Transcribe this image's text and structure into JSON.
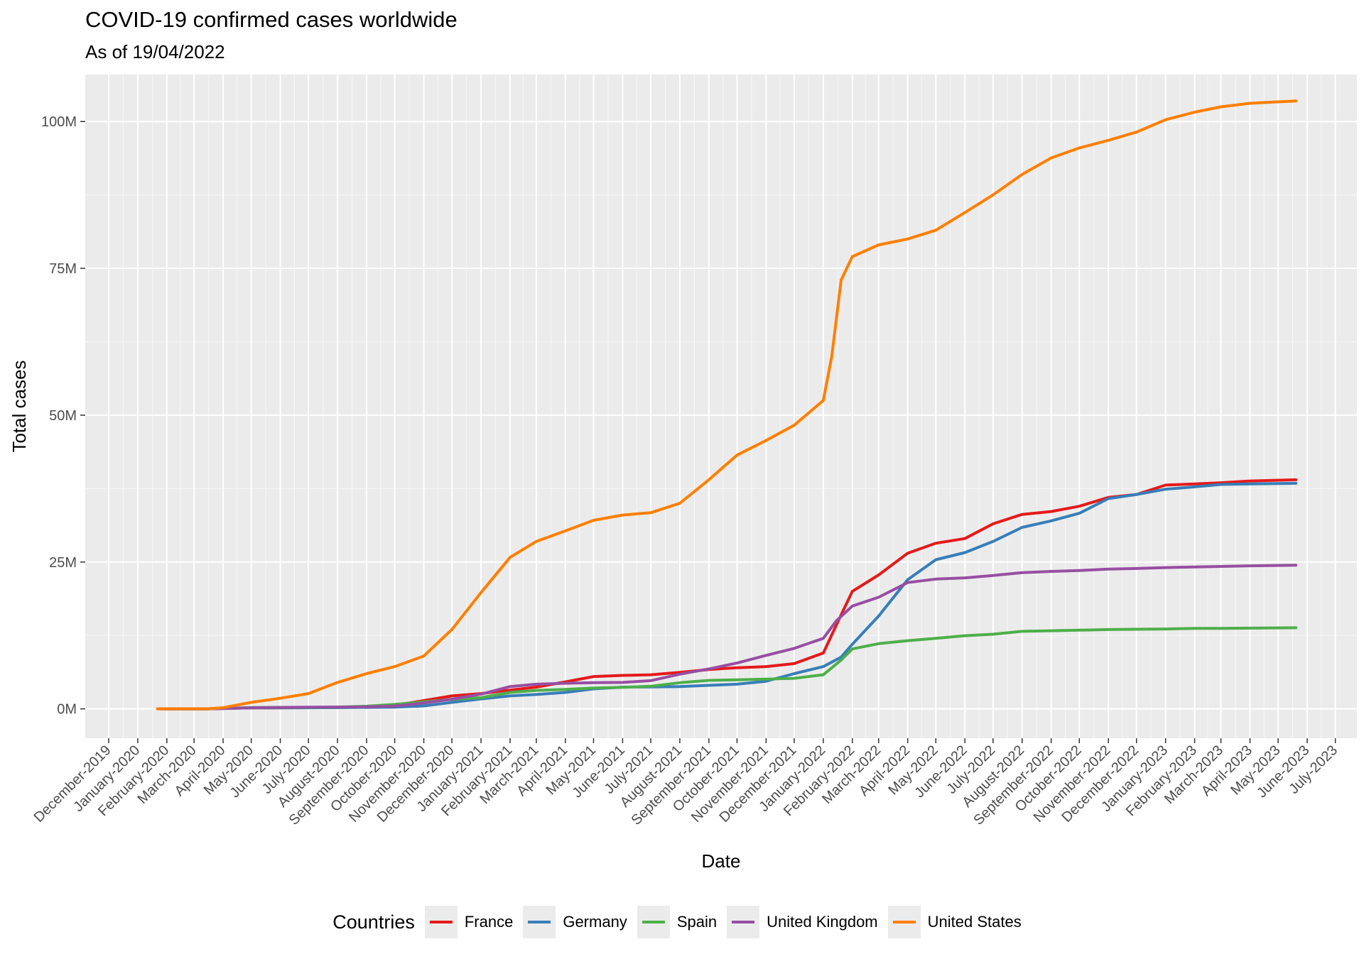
{
  "chart_data": {
    "type": "line",
    "title": "COVID-19 confirmed cases worldwide",
    "subtitle": "As of 19/04/2022",
    "xlabel": "Date",
    "ylabel": "Total cases",
    "x_axis": {
      "type": "date",
      "range": [
        "2019-11-06",
        "2023-07-24"
      ],
      "ticks": [
        "2019-12-01",
        "2020-01-01",
        "2020-02-01",
        "2020-03-01",
        "2020-04-01",
        "2020-05-01",
        "2020-06-01",
        "2020-07-01",
        "2020-08-01",
        "2020-09-01",
        "2020-10-01",
        "2020-11-01",
        "2020-12-01",
        "2021-01-01",
        "2021-02-01",
        "2021-03-01",
        "2021-04-01",
        "2021-05-01",
        "2021-06-01",
        "2021-07-01",
        "2021-08-01",
        "2021-09-01",
        "2021-10-01",
        "2021-11-01",
        "2021-12-01",
        "2022-01-01",
        "2022-02-01",
        "2022-03-01",
        "2022-04-01",
        "2022-05-01",
        "2022-06-01",
        "2022-07-01",
        "2022-08-01",
        "2022-09-01",
        "2022-10-01",
        "2022-11-01",
        "2022-12-01",
        "2023-01-01",
        "2023-02-01",
        "2023-03-01",
        "2023-04-01",
        "2023-05-01",
        "2023-06-01",
        "2023-07-01"
      ],
      "tick_labels": [
        "December-2019",
        "January-2020",
        "February-2020",
        "March-2020",
        "April-2020",
        "May-2020",
        "June-2020",
        "July-2020",
        "August-2020",
        "September-2020",
        "October-2020",
        "November-2020",
        "December-2020",
        "January-2021",
        "February-2021",
        "March-2021",
        "April-2021",
        "May-2021",
        "June-2021",
        "July-2021",
        "August-2021",
        "September-2021",
        "October-2021",
        "November-2021",
        "December-2021",
        "January-2022",
        "February-2022",
        "March-2022",
        "April-2022",
        "May-2022",
        "June-2022",
        "July-2022",
        "August-2022",
        "September-2022",
        "October-2022",
        "November-2022",
        "December-2022",
        "January-2023",
        "February-2023",
        "March-2023",
        "April-2023",
        "May-2023",
        "June-2023",
        "July-2023"
      ],
      "tick_label_angle": 45
    },
    "y_axis": {
      "range": [
        -5000000,
        108000000
      ],
      "ticks": [
        0,
        25000000,
        50000000,
        75000000,
        100000000
      ],
      "tick_labels": [
        "0M",
        "25M",
        "50M",
        "75M",
        "100M"
      ]
    },
    "grid": true,
    "legend": {
      "title": "Countries",
      "position": "bottom"
    },
    "series": [
      {
        "name": "France",
        "color": "#E41A1C",
        "points": [
          [
            "2020-01-24",
            0
          ],
          [
            "2020-03-15",
            5000
          ],
          [
            "2020-05-01",
            160000
          ],
          [
            "2020-07-01",
            200000
          ],
          [
            "2020-08-01",
            230000
          ],
          [
            "2020-09-01",
            300000
          ],
          [
            "2020-10-01",
            600000
          ],
          [
            "2020-11-01",
            1400000
          ],
          [
            "2020-12-01",
            2200000
          ],
          [
            "2021-01-01",
            2600000
          ],
          [
            "2021-02-01",
            3200000
          ],
          [
            "2021-03-01",
            3700000
          ],
          [
            "2021-04-01",
            4600000
          ],
          [
            "2021-05-01",
            5500000
          ],
          [
            "2021-06-01",
            5700000
          ],
          [
            "2021-07-01",
            5800000
          ],
          [
            "2021-08-01",
            6200000
          ],
          [
            "2021-09-01",
            6700000
          ],
          [
            "2021-10-01",
            7000000
          ],
          [
            "2021-11-01",
            7200000
          ],
          [
            "2021-12-01",
            7700000
          ],
          [
            "2022-01-01",
            9500000
          ],
          [
            "2022-01-20",
            16000000
          ],
          [
            "2022-02-01",
            20000000
          ],
          [
            "2022-03-01",
            22800000
          ],
          [
            "2022-04-01",
            26500000
          ],
          [
            "2022-05-01",
            28200000
          ],
          [
            "2022-06-01",
            29000000
          ],
          [
            "2022-07-01",
            31500000
          ],
          [
            "2022-08-01",
            33100000
          ],
          [
            "2022-09-01",
            33600000
          ],
          [
            "2022-10-01",
            34500000
          ],
          [
            "2022-11-01",
            36000000
          ],
          [
            "2022-12-01",
            36500000
          ],
          [
            "2023-01-01",
            38100000
          ],
          [
            "2023-02-01",
            38300000
          ],
          [
            "2023-03-01",
            38500000
          ],
          [
            "2023-04-01",
            38800000
          ],
          [
            "2023-05-20",
            39000000
          ]
        ]
      },
      {
        "name": "Germany",
        "color": "#377EB8",
        "points": [
          [
            "2020-01-27",
            0
          ],
          [
            "2020-03-15",
            5000
          ],
          [
            "2020-05-01",
            160000
          ],
          [
            "2020-07-01",
            190000
          ],
          [
            "2020-08-01",
            210000
          ],
          [
            "2020-09-01",
            240000
          ],
          [
            "2020-10-01",
            290000
          ],
          [
            "2020-11-01",
            500000
          ],
          [
            "2020-12-01",
            1100000
          ],
          [
            "2021-01-01",
            1700000
          ],
          [
            "2021-02-01",
            2200000
          ],
          [
            "2021-03-01",
            2450000
          ],
          [
            "2021-04-01",
            2800000
          ],
          [
            "2021-05-01",
            3400000
          ],
          [
            "2021-06-01",
            3700000
          ],
          [
            "2021-07-01",
            3730000
          ],
          [
            "2021-08-01",
            3800000
          ],
          [
            "2021-09-01",
            4000000
          ],
          [
            "2021-10-01",
            4200000
          ],
          [
            "2021-11-01",
            4700000
          ],
          [
            "2021-12-01",
            6000000
          ],
          [
            "2022-01-01",
            7200000
          ],
          [
            "2022-01-20",
            8800000
          ],
          [
            "2022-02-01",
            11000000
          ],
          [
            "2022-03-01",
            15800000
          ],
          [
            "2022-04-01",
            22000000
          ],
          [
            "2022-05-01",
            25400000
          ],
          [
            "2022-06-01",
            26600000
          ],
          [
            "2022-07-01",
            28500000
          ],
          [
            "2022-08-01",
            30900000
          ],
          [
            "2022-09-01",
            32000000
          ],
          [
            "2022-10-01",
            33300000
          ],
          [
            "2022-11-01",
            35800000
          ],
          [
            "2022-12-01",
            36500000
          ],
          [
            "2023-01-01",
            37400000
          ],
          [
            "2023-02-01",
            37800000
          ],
          [
            "2023-03-01",
            38200000
          ],
          [
            "2023-04-01",
            38300000
          ],
          [
            "2023-05-20",
            38400000
          ]
        ]
      },
      {
        "name": "Spain",
        "color": "#4DAF4A",
        "points": [
          [
            "2020-01-31",
            0
          ],
          [
            "2020-03-15",
            8000
          ],
          [
            "2020-05-01",
            220000
          ],
          [
            "2020-07-01",
            250000
          ],
          [
            "2020-08-01",
            300000
          ],
          [
            "2020-09-01",
            450000
          ],
          [
            "2020-10-01",
            750000
          ],
          [
            "2020-11-01",
            1200000
          ],
          [
            "2020-12-01",
            1600000
          ],
          [
            "2021-01-01",
            1900000
          ],
          [
            "2021-02-01",
            2800000
          ],
          [
            "2021-03-01",
            3150000
          ],
          [
            "2021-04-01",
            3300000
          ],
          [
            "2021-05-01",
            3550000
          ],
          [
            "2021-06-01",
            3650000
          ],
          [
            "2021-07-01",
            3850000
          ],
          [
            "2021-08-01",
            4450000
          ],
          [
            "2021-09-01",
            4850000
          ],
          [
            "2021-10-01",
            4950000
          ],
          [
            "2021-11-01",
            5050000
          ],
          [
            "2021-12-01",
            5200000
          ],
          [
            "2022-01-01",
            5800000
          ],
          [
            "2022-01-20",
            8300000
          ],
          [
            "2022-02-01",
            10200000
          ],
          [
            "2022-03-01",
            11100000
          ],
          [
            "2022-04-01",
            11600000
          ],
          [
            "2022-05-01",
            12000000
          ],
          [
            "2022-06-01",
            12450000
          ],
          [
            "2022-07-01",
            12700000
          ],
          [
            "2022-08-01",
            13200000
          ],
          [
            "2022-09-01",
            13300000
          ],
          [
            "2022-10-01",
            13400000
          ],
          [
            "2022-11-01",
            13500000
          ],
          [
            "2022-12-01",
            13550000
          ],
          [
            "2023-01-01",
            13600000
          ],
          [
            "2023-02-01",
            13700000
          ],
          [
            "2023-03-01",
            13700000
          ],
          [
            "2023-04-01",
            13750000
          ],
          [
            "2023-05-20",
            13800000
          ]
        ]
      },
      {
        "name": "United Kingdom",
        "color": "#984EA3",
        "points": [
          [
            "2020-01-31",
            0
          ],
          [
            "2020-03-15",
            5000
          ],
          [
            "2020-05-01",
            180000
          ],
          [
            "2020-07-01",
            290000
          ],
          [
            "2020-08-01",
            310000
          ],
          [
            "2020-09-01",
            340000
          ],
          [
            "2020-10-01",
            470000
          ],
          [
            "2020-11-01",
            1000000
          ],
          [
            "2020-12-01",
            1650000
          ],
          [
            "2021-01-01",
            2500000
          ],
          [
            "2021-02-01",
            3800000
          ],
          [
            "2021-03-01",
            4200000
          ],
          [
            "2021-04-01",
            4350000
          ],
          [
            "2021-05-01",
            4450000
          ],
          [
            "2021-06-01",
            4500000
          ],
          [
            "2021-07-01",
            4800000
          ],
          [
            "2021-08-01",
            5900000
          ],
          [
            "2021-09-01",
            6800000
          ],
          [
            "2021-10-01",
            7800000
          ],
          [
            "2021-11-01",
            9100000
          ],
          [
            "2021-12-01",
            10300000
          ],
          [
            "2022-01-01",
            12000000
          ],
          [
            "2022-01-15",
            15000000
          ],
          [
            "2022-02-01",
            17500000
          ],
          [
            "2022-03-01",
            19000000
          ],
          [
            "2022-04-01",
            21500000
          ],
          [
            "2022-05-01",
            22100000
          ],
          [
            "2022-06-01",
            22300000
          ],
          [
            "2022-07-01",
            22700000
          ],
          [
            "2022-08-01",
            23200000
          ],
          [
            "2022-09-01",
            23400000
          ],
          [
            "2022-10-01",
            23550000
          ],
          [
            "2022-11-01",
            23800000
          ],
          [
            "2022-12-01",
            23900000
          ],
          [
            "2023-01-01",
            24050000
          ],
          [
            "2023-02-01",
            24150000
          ],
          [
            "2023-03-01",
            24250000
          ],
          [
            "2023-04-01",
            24350000
          ],
          [
            "2023-05-20",
            24450000
          ]
        ]
      },
      {
        "name": "United States",
        "color": "#FF7F00",
        "points": [
          [
            "2020-01-22",
            0
          ],
          [
            "2020-03-15",
            3000
          ],
          [
            "2020-04-01",
            200000
          ],
          [
            "2020-05-01",
            1100000
          ],
          [
            "2020-06-01",
            1800000
          ],
          [
            "2020-07-01",
            2600000
          ],
          [
            "2020-08-01",
            4500000
          ],
          [
            "2020-09-01",
            6000000
          ],
          [
            "2020-10-01",
            7200000
          ],
          [
            "2020-11-01",
            9000000
          ],
          [
            "2020-12-01",
            13500000
          ],
          [
            "2021-01-01",
            19800000
          ],
          [
            "2021-02-01",
            25800000
          ],
          [
            "2021-03-01",
            28500000
          ],
          [
            "2021-04-01",
            30300000
          ],
          [
            "2021-05-01",
            32100000
          ],
          [
            "2021-06-01",
            33000000
          ],
          [
            "2021-07-01",
            33400000
          ],
          [
            "2021-08-01",
            35000000
          ],
          [
            "2021-09-01",
            39000000
          ],
          [
            "2021-10-01",
            43200000
          ],
          [
            "2021-11-01",
            45700000
          ],
          [
            "2021-12-01",
            48300000
          ],
          [
            "2022-01-01",
            52500000
          ],
          [
            "2022-01-10",
            60000000
          ],
          [
            "2022-01-20",
            73000000
          ],
          [
            "2022-02-01",
            77000000
          ],
          [
            "2022-03-01",
            79000000
          ],
          [
            "2022-04-01",
            80000000
          ],
          [
            "2022-05-01",
            81500000
          ],
          [
            "2022-06-01",
            84500000
          ],
          [
            "2022-07-01",
            87500000
          ],
          [
            "2022-08-01",
            91000000
          ],
          [
            "2022-09-01",
            93800000
          ],
          [
            "2022-10-01",
            95500000
          ],
          [
            "2022-11-01",
            96800000
          ],
          [
            "2022-12-01",
            98200000
          ],
          [
            "2023-01-01",
            100300000
          ],
          [
            "2023-02-01",
            101600000
          ],
          [
            "2023-03-01",
            102500000
          ],
          [
            "2023-04-01",
            103100000
          ],
          [
            "2023-05-20",
            103500000
          ]
        ]
      }
    ]
  }
}
